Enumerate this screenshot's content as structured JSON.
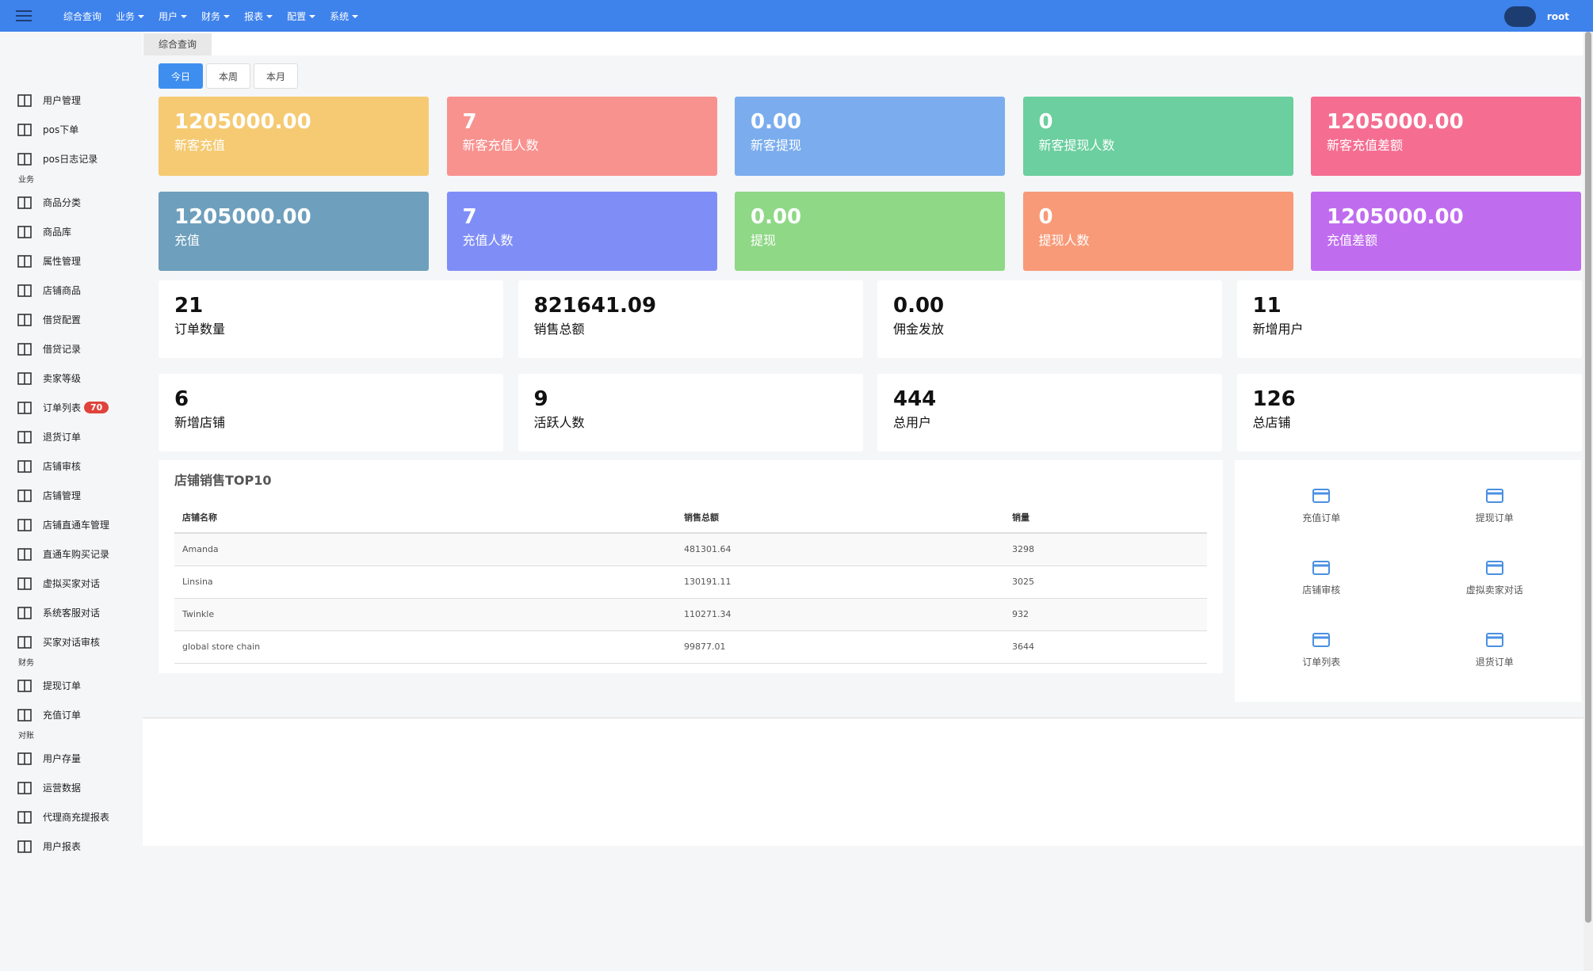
{
  "topbar": {
    "nav": [
      "综合查询",
      "业务",
      "用户",
      "财务",
      "报表",
      "配置",
      "系统"
    ],
    "user": "root"
  },
  "sidebar": [
    {
      "items": [
        {
          "label": "用户管理"
        },
        {
          "label": "pos下单"
        },
        {
          "label": "pos日志记录"
        }
      ]
    },
    {
      "heading": "业务",
      "items": [
        {
          "label": "商品分类"
        },
        {
          "label": "商品库"
        },
        {
          "label": "属性管理"
        },
        {
          "label": "店铺商品"
        },
        {
          "label": "借贷配置"
        },
        {
          "label": "借贷记录"
        },
        {
          "label": "卖家等级"
        },
        {
          "label": "订单列表",
          "badge": 70
        },
        {
          "label": "退货订单"
        },
        {
          "label": "店铺审核"
        },
        {
          "label": "店铺管理"
        },
        {
          "label": "店铺直通车管理"
        },
        {
          "label": "直通车购买记录"
        },
        {
          "label": "虚拟买家对话"
        },
        {
          "label": "系统客服对话"
        },
        {
          "label": "买家对话审核"
        }
      ]
    },
    {
      "heading": "财务",
      "items": [
        {
          "label": "提现订单"
        },
        {
          "label": "充值订单"
        }
      ]
    },
    {
      "heading": "对账",
      "items": [
        {
          "label": "用户存量"
        },
        {
          "label": "运营数据"
        },
        {
          "label": "代理商充提报表"
        },
        {
          "label": "用户报表"
        }
      ]
    }
  ],
  "tab": "综合查询",
  "periods": [
    "今日",
    "本周",
    "本月"
  ],
  "color_cards": [
    {
      "value": "1205000.00",
      "label": "新客充值",
      "color": "#f5ca72"
    },
    {
      "value": "7",
      "label": "新客充值人数",
      "color": "#f8928f"
    },
    {
      "value": "0.00",
      "label": "新客提现",
      "color": "#7badee"
    },
    {
      "value": "0",
      "label": "新客提现人数",
      "color": "#6bcf9f"
    },
    {
      "value": "1205000.00",
      "label": "新客充值差额",
      "color": "#f56e92"
    },
    {
      "value": "1205000.00",
      "label": "充值",
      "color": "#6e9fbd"
    },
    {
      "value": "7",
      "label": "充值人数",
      "color": "#7f8ef7"
    },
    {
      "value": "0.00",
      "label": "提现",
      "color": "#8fd886"
    },
    {
      "value": "0",
      "label": "提现人数",
      "color": "#f89a78"
    },
    {
      "value": "1205000.00",
      "label": "充值差额",
      "color": "#c06cef"
    }
  ],
  "stat_cards": [
    {
      "value": "21",
      "label": "订单数量"
    },
    {
      "value": "821641.09",
      "label": "销售总额"
    },
    {
      "value": "0.00",
      "label": "佣金发放"
    },
    {
      "value": "11",
      "label": "新增用户"
    },
    {
      "value": "6",
      "label": "新增店铺"
    },
    {
      "value": "9",
      "label": "活跃人数"
    },
    {
      "value": "444",
      "label": "总用户"
    },
    {
      "value": "126",
      "label": "总店铺"
    }
  ],
  "top_stores": {
    "title": "店铺销售TOP10",
    "columns": [
      "店铺名称",
      "销售总额",
      "销量"
    ],
    "rows": [
      [
        "Amanda",
        "481301.64",
        "3298"
      ],
      [
        "Linsina",
        "130191.11",
        "3025"
      ],
      [
        "Twinkle",
        "110271.34",
        "932"
      ],
      [
        "global store chain",
        "99877.01",
        "3644"
      ]
    ]
  },
  "quick_links": [
    "充值订单",
    "提现订单",
    "店铺审核",
    "虚拟卖家对话",
    "订单列表",
    "退货订单"
  ]
}
